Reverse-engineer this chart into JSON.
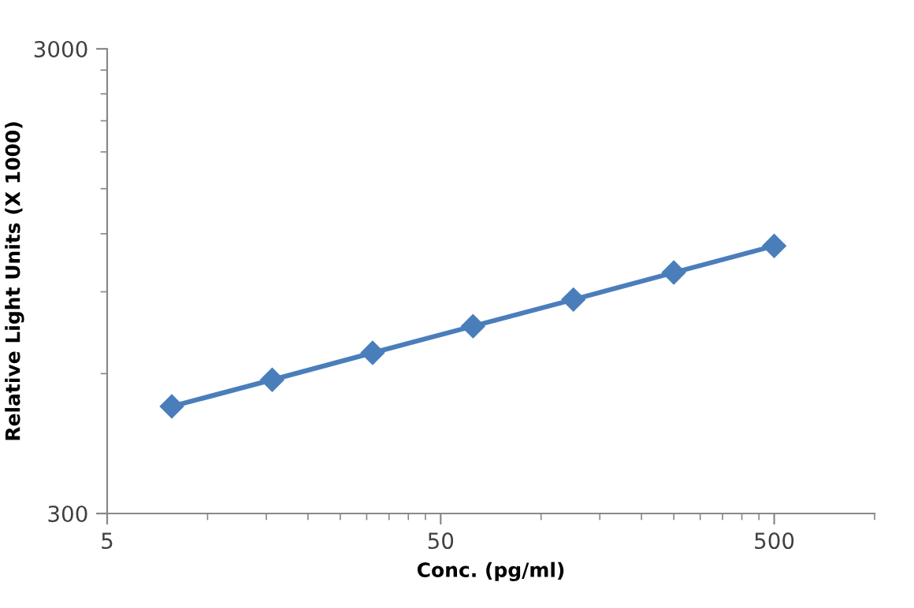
{
  "chart_data": {
    "type": "line",
    "xlabel": "Conc. (pg/ml)",
    "ylabel": "Relative Light Units (X 1000)",
    "x": [
      7.8125,
      15.625,
      31.25,
      62.5,
      125,
      250,
      500
    ],
    "series": [
      {
        "color": "#4a7ebb",
        "values": [
          510,
          582,
          665,
          759,
          866,
          990,
          1130
        ]
      }
    ],
    "log": "xy",
    "xlim": [
      5,
      1000
    ],
    "ylim": [
      300,
      3000
    ],
    "xticks": [
      5,
      50,
      500
    ],
    "yticks": [
      300,
      3000
    ],
    "marker": "diamond",
    "line_style": "solid",
    "grid": false,
    "legend": false
  }
}
